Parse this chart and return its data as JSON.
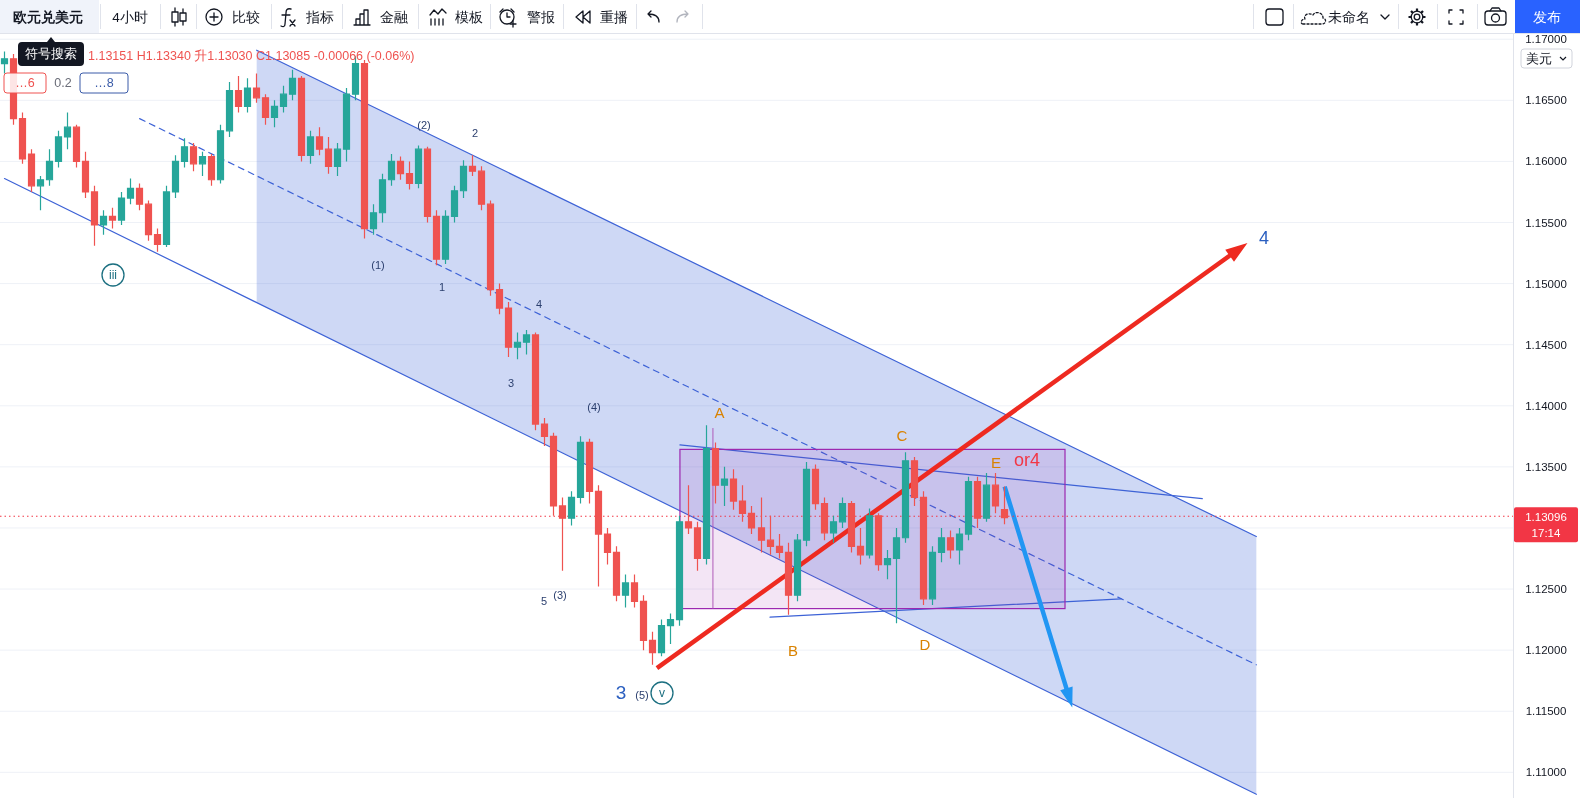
{
  "chart_data": {
    "type": "candlestick",
    "title": "欧元兑美元",
    "subtitle": "4小时",
    "categories": [
      null,
      null,
      null,
      null,
      null,
      null,
      null,
      null,
      null,
      null,
      null,
      null,
      null,
      null,
      null,
      null,
      null,
      null,
      null,
      null,
      null,
      null,
      null,
      null,
      null,
      null,
      null,
      null,
      null,
      null,
      null,
      null,
      null,
      null,
      null,
      null,
      null,
      null,
      null,
      null,
      null,
      null,
      null,
      null,
      null,
      null,
      null,
      null,
      null,
      null,
      null,
      null,
      null,
      null,
      null,
      null,
      null,
      null,
      null,
      null,
      null,
      null,
      null,
      null,
      null,
      null,
      null,
      null,
      null,
      null,
      null,
      null,
      null,
      null,
      null,
      null,
      null,
      null,
      null,
      null,
      null,
      null,
      null,
      null,
      null,
      null,
      null,
      null,
      null,
      null,
      null,
      null,
      null,
      null,
      null,
      null,
      null,
      null,
      null,
      null,
      null,
      null,
      null,
      null,
      null,
      null,
      null,
      null,
      null,
      null,
      null,
      null,
      null,
      null,
      null,
      null,
      null,
      null,
      null,
      null,
      null,
      null,
      null,
      null,
      null,
      null,
      null,
      null,
      null,
      null,
      null,
      null,
      null,
      null,
      null,
      null,
      null,
      null,
      null,
      null,
      null,
      null,
      null,
      null,
      null,
      null,
      null,
      null,
      null,
      null,
      null,
      null,
      null,
      null,
      null,
      null,
      null,
      null,
      null,
      null,
      null,
      null,
      null,
      null,
      null,
      null,
      null,
      null
    ],
    "ohlc": [
      [
        1.168,
        1.169,
        1.1672,
        1.1684
      ],
      [
        1.1684,
        1.1688,
        1.163,
        1.1635
      ],
      [
        1.1635,
        1.164,
        1.1598,
        1.1602
      ],
      [
        1.1606,
        1.161,
        1.1575,
        1.158
      ],
      [
        1.158,
        1.1588,
        1.156,
        1.1585
      ],
      [
        1.1585,
        1.161,
        1.158,
        1.16
      ],
      [
        1.16,
        1.1625,
        1.1595,
        1.162
      ],
      [
        1.162,
        1.164,
        1.161,
        1.1628
      ],
      [
        1.1628,
        1.163,
        1.1595,
        1.16
      ],
      [
        1.16,
        1.1608,
        1.157,
        1.1575
      ],
      [
        1.1575,
        1.158,
        1.1531,
        1.1548
      ],
      [
        1.1548,
        1.156,
        1.154,
        1.1555
      ],
      [
        1.1555,
        1.1562,
        1.1545,
        1.1552
      ],
      [
        1.1552,
        1.1575,
        1.1548,
        1.157
      ],
      [
        1.157,
        1.1586,
        1.1565,
        1.1578
      ],
      [
        1.1578,
        1.1582,
        1.156,
        1.1565
      ],
      [
        1.1565,
        1.1568,
        1.1535,
        1.154
      ],
      [
        1.154,
        1.1545,
        1.1526,
        1.1532
      ],
      [
        1.1532,
        1.158,
        1.153,
        1.1575
      ],
      [
        1.1575,
        1.1605,
        1.157,
        1.16
      ],
      [
        1.16,
        1.1619,
        1.1595,
        1.1612
      ],
      [
        1.1612,
        1.1615,
        1.1592,
        1.1598
      ],
      [
        1.1598,
        1.1608,
        1.1588,
        1.1604
      ],
      [
        1.1604,
        1.1606,
        1.158,
        1.1585
      ],
      [
        1.1585,
        1.163,
        1.1582,
        1.1625
      ],
      [
        1.1625,
        1.1665,
        1.162,
        1.1658
      ],
      [
        1.1658,
        1.167,
        1.164,
        1.1645
      ],
      [
        1.1645,
        1.1668,
        1.164,
        1.166
      ],
      [
        1.166,
        1.1672,
        1.1648,
        1.1652
      ],
      [
        1.1652,
        1.1655,
        1.163,
        1.1636
      ],
      [
        1.1636,
        1.165,
        1.1628,
        1.1645
      ],
      [
        1.1645,
        1.1662,
        1.164,
        1.1655
      ],
      [
        1.1655,
        1.1675,
        1.165,
        1.1668
      ],
      [
        1.1668,
        1.167,
        1.16,
        1.1605
      ],
      [
        1.1605,
        1.1625,
        1.1598,
        1.162
      ],
      [
        1.162,
        1.1628,
        1.1605,
        1.161
      ],
      [
        1.161,
        1.162,
        1.159,
        1.1596
      ],
      [
        1.1596,
        1.1615,
        1.1588,
        1.161
      ],
      [
        1.161,
        1.166,
        1.16,
        1.1655
      ],
      [
        1.1655,
        1.1686,
        1.165,
        1.168
      ],
      [
        1.168,
        1.1683,
        1.1537,
        1.1545
      ],
      [
        1.1545,
        1.1565,
        1.154,
        1.1558
      ],
      [
        1.1558,
        1.159,
        1.155,
        1.1585
      ],
      [
        1.1585,
        1.1606,
        1.158,
        1.16
      ],
      [
        1.16,
        1.1604,
        1.1585,
        1.159
      ],
      [
        1.159,
        1.16,
        1.1577,
        1.1582
      ],
      [
        1.1582,
        1.1613,
        1.1578,
        1.161
      ],
      [
        1.161,
        1.1612,
        1.155,
        1.1555
      ],
      [
        1.1555,
        1.156,
        1.1515,
        1.152
      ],
      [
        1.152,
        1.156,
        1.1516,
        1.1555
      ],
      [
        1.1555,
        1.158,
        1.155,
        1.1576
      ],
      [
        1.1576,
        1.1601,
        1.157,
        1.1596
      ],
      [
        1.1596,
        1.1605,
        1.1588,
        1.1592
      ],
      [
        1.1592,
        1.1596,
        1.156,
        1.1565
      ],
      [
        1.1565,
        1.1568,
        1.149,
        1.1495
      ],
      [
        1.1495,
        1.15,
        1.1475,
        1.148
      ],
      [
        1.148,
        1.1485,
        1.144,
        1.1448
      ],
      [
        1.1448,
        1.146,
        1.1438,
        1.1452
      ],
      [
        1.1452,
        1.1462,
        1.1442,
        1.1458
      ],
      [
        1.1458,
        1.146,
        1.138,
        1.1385
      ],
      [
        1.1385,
        1.139,
        1.1367,
        1.1375
      ],
      [
        1.1375,
        1.1378,
        1.131,
        1.1318
      ],
      [
        1.1318,
        1.1325,
        1.1265,
        1.1308
      ],
      [
        1.1308,
        1.133,
        1.1302,
        1.1325
      ],
      [
        1.1325,
        1.1375,
        1.132,
        1.137
      ],
      [
        1.137,
        1.1373,
        1.132,
        1.133
      ],
      [
        1.133,
        1.1335,
        1.1252,
        1.1295
      ],
      [
        1.1295,
        1.13,
        1.127,
        1.128
      ],
      [
        1.128,
        1.1285,
        1.124,
        1.1245
      ],
      [
        1.1245,
        1.1262,
        1.1235,
        1.1255
      ],
      [
        1.1255,
        1.1262,
        1.1235,
        1.124
      ],
      [
        1.124,
        1.1245,
        1.12,
        1.1208
      ],
      [
        1.1208,
        1.1215,
        1.1188,
        1.1198
      ],
      [
        1.1198,
        1.1225,
        1.1195,
        1.122
      ],
      [
        1.122,
        1.123,
        1.1205,
        1.1225
      ],
      [
        1.1225,
        1.131,
        1.122,
        1.1305
      ],
      [
        1.1305,
        1.1335,
        1.1295,
        1.13
      ],
      [
        1.13,
        1.1305,
        1.1265,
        1.1275
      ],
      [
        1.1275,
        1.1384,
        1.127,
        1.1365
      ],
      [
        1.1365,
        1.137,
        1.132,
        1.1335
      ],
      [
        1.1335,
        1.135,
        1.1318,
        1.134
      ],
      [
        1.134,
        1.1348,
        1.1315,
        1.1322
      ],
      [
        1.1322,
        1.1335,
        1.1305,
        1.1312
      ],
      [
        1.1312,
        1.1318,
        1.1295,
        1.13
      ],
      [
        1.13,
        1.1325,
        1.128,
        1.129
      ],
      [
        1.129,
        1.131,
        1.1278,
        1.1285
      ],
      [
        1.1285,
        1.1295,
        1.1275,
        1.128
      ],
      [
        1.128,
        1.1288,
        1.1229,
        1.1245
      ],
      [
        1.1245,
        1.1295,
        1.124,
        1.129
      ],
      [
        1.129,
        1.1354,
        1.1285,
        1.1348
      ],
      [
        1.1348,
        1.1352,
        1.1315,
        1.132
      ],
      [
        1.132,
        1.1325,
        1.129,
        1.1296
      ],
      [
        1.1296,
        1.131,
        1.1288,
        1.1305
      ],
      [
        1.1305,
        1.1325,
        1.13,
        1.132
      ],
      [
        1.132,
        1.1322,
        1.128,
        1.1285
      ],
      [
        1.1285,
        1.13,
        1.127,
        1.1278
      ],
      [
        1.1278,
        1.1316,
        1.1275,
        1.131
      ],
      [
        1.131,
        1.1312,
        1.1265,
        1.127
      ],
      [
        1.127,
        1.1282,
        1.1258,
        1.1275
      ],
      [
        1.1275,
        1.13,
        1.1222,
        1.1292
      ],
      [
        1.1292,
        1.1362,
        1.1288,
        1.1355
      ],
      [
        1.1355,
        1.1358,
        1.1318,
        1.1325
      ],
      [
        1.1325,
        1.133,
        1.1237,
        1.1242
      ],
      [
        1.1242,
        1.1285,
        1.1237,
        1.128
      ],
      [
        1.128,
        1.13,
        1.1272,
        1.1292
      ],
      [
        1.1292,
        1.1298,
        1.1275,
        1.1282
      ],
      [
        1.1282,
        1.13,
        1.127,
        1.1295
      ],
      [
        1.1295,
        1.1342,
        1.129,
        1.1338
      ],
      [
        1.1338,
        1.1342,
        1.13,
        1.1308
      ],
      [
        1.1308,
        1.1345,
        1.1305,
        1.1335
      ],
      [
        1.1335,
        1.1345,
        1.1312,
        1.1318
      ],
      [
        1.13151,
        1.1334,
        1.1303,
        1.13085
      ],
      null,
      null,
      null,
      null,
      null,
      null,
      null,
      null,
      null,
      null,
      null,
      null,
      null,
      null,
      null,
      null,
      null,
      null,
      null,
      null,
      null,
      null,
      null,
      null,
      null,
      null,
      null,
      null,
      null,
      null,
      null,
      null,
      null,
      null,
      null,
      null,
      null,
      null,
      null,
      null,
      null,
      null,
      null,
      null,
      null,
      null,
      null,
      null,
      null,
      null,
      null,
      null,
      null,
      null,
      null,
      null
    ],
    "colors": [
      "#26a69a",
      "#ef5350",
      "#ef5350",
      "#ef5350",
      "#26a69a",
      "#26a69a",
      "#26a69a",
      "#26a69a",
      "#ef5350",
      "#ef5350",
      "#ef5350",
      "#26a69a",
      "#ef5350",
      "#26a69a",
      "#26a69a",
      "#ef5350",
      "#ef5350",
      "#ef5350",
      "#26a69a",
      "#26a69a",
      "#26a69a",
      "#ef5350",
      "#26a69a",
      "#ef5350",
      "#26a69a",
      "#26a69a",
      "#ef5350",
      "#26a69a",
      "#ef5350",
      "#ef5350",
      "#26a69a",
      "#26a69a",
      "#26a69a",
      "#ef5350",
      "#26a69a",
      "#ef5350",
      "#ef5350",
      "#26a69a",
      "#26a69a",
      "#26a69a",
      "#ef5350",
      "#26a69a",
      "#26a69a",
      "#26a69a",
      "#ef5350",
      "#ef5350",
      "#26a69a",
      "#ef5350",
      "#ef5350",
      "#26a69a",
      "#26a69a",
      "#26a69a",
      "#ef5350",
      "#ef5350",
      "#ef5350",
      "#ef5350",
      "#ef5350",
      "#26a69a",
      "#26a69a",
      "#ef5350",
      "#ef5350",
      "#ef5350",
      "#ef5350",
      "#26a69a",
      "#26a69a",
      "#ef5350",
      "#ef5350",
      "#ef5350",
      "#ef5350",
      "#26a69a",
      "#ef5350",
      "#ef5350",
      "#ef5350",
      "#26a69a",
      "#26a69a",
      "#26a69a",
      "#ef5350",
      "#ef5350",
      "#26a69a",
      "#ef5350",
      "#26a69a",
      "#ef5350",
      "#ef5350",
      "#ef5350",
      "#ef5350",
      "#ef5350",
      "#ef5350",
      "#ef5350",
      "#26a69a",
      "#26a69a",
      "#ef5350",
      "#ef5350",
      "#26a69a",
      "#26a69a",
      "#ef5350",
      "#ef5350",
      "#26a69a",
      "#ef5350",
      "#26a69a",
      "#26a69a",
      "#26a69a",
      "#ef5350",
      "#ef5350",
      "#26a69a",
      "#26a69a",
      "#ef5350",
      "#26a69a",
      "#26a69a",
      "#ef5350",
      "#26a69a",
      "#ef5350",
      "#ef5350",
      null,
      null,
      null,
      null,
      null,
      null,
      null,
      null,
      null,
      null,
      null,
      null,
      null,
      null,
      null,
      null,
      null,
      null,
      null,
      null,
      null,
      null,
      null,
      null,
      null,
      null,
      null,
      null,
      null,
      null,
      null,
      null,
      null,
      null,
      null,
      null,
      null,
      null,
      null,
      null,
      null,
      null,
      null,
      null,
      null,
      null,
      null,
      null,
      null,
      null,
      null,
      null,
      null,
      null,
      null,
      null
    ],
    "series": [
      {
        "type": "line",
        "color": "#3d62d6",
        "line_style": "dashed",
        "values": [
          null,
          null,
          null,
          null,
          null,
          null,
          null,
          null,
          null,
          null,
          null,
          null,
          null,
          null,
          null,
          1.1635,
          null,
          null,
          null,
          null,
          null,
          null,
          null,
          null,
          null,
          null,
          null,
          null,
          null,
          null,
          null,
          null,
          null,
          null,
          null,
          null,
          null,
          null,
          null,
          null,
          null,
          null,
          null,
          null,
          null,
          null,
          null,
          null,
          null,
          null,
          null,
          null,
          null,
          null,
          null,
          null,
          null,
          null,
          null,
          null,
          null,
          null,
          null,
          null,
          null,
          null,
          null,
          null,
          null,
          null,
          null,
          null,
          null,
          null,
          null,
          null,
          null,
          null,
          null,
          null,
          null,
          null,
          null,
          null,
          null,
          null,
          null,
          null,
          null,
          null,
          null,
          null,
          null,
          null,
          null,
          null,
          null,
          null,
          null,
          null,
          null,
          null,
          null,
          null,
          null,
          null,
          null,
          null,
          null,
          null,
          null,
          null,
          null,
          null,
          null,
          null,
          null,
          null,
          null,
          null,
          null,
          null,
          null,
          null,
          null,
          null,
          null,
          null,
          null,
          null,
          null,
          null,
          null,
          null,
          null,
          null,
          null,
          null,
          null,
          1.1188,
          null,
          null,
          null,
          null,
          null,
          null,
          null,
          null,
          null,
          null,
          null,
          null,
          null,
          null,
          null,
          null,
          null,
          null,
          null,
          null,
          null,
          null,
          null,
          null,
          null,
          null,
          null,
          null
        ],
        "lower": [
          null,
          null,
          null,
          null,
          null,
          null,
          null,
          null,
          null,
          null,
          null,
          null,
          null,
          null,
          null,
          null,
          null,
          null,
          null,
          null,
          null,
          null,
          null,
          null,
          null,
          null,
          null,
          null,
          1.1485,
          null,
          null,
          null,
          null,
          null,
          null,
          null,
          null,
          null,
          null,
          null,
          null,
          null,
          null,
          null,
          null,
          null,
          null,
          null,
          null,
          null,
          null,
          null,
          null,
          null,
          null,
          null,
          null,
          null,
          null,
          null,
          null,
          null,
          null,
          null,
          null,
          null,
          null,
          null,
          null,
          null,
          null,
          null,
          null,
          null,
          null,
          null,
          null,
          null,
          null,
          null,
          null,
          null,
          null,
          null,
          null,
          null,
          null,
          null,
          null,
          null,
          null,
          null,
          null,
          null,
          null,
          null,
          null,
          null,
          null,
          null,
          null,
          null,
          null,
          null,
          null,
          null,
          null,
          null,
          null,
          null,
          null,
          null,
          null,
          null,
          null,
          null,
          null,
          null,
          null,
          null,
          null,
          null,
          null,
          null,
          null,
          null,
          null,
          null,
          null,
          null,
          null,
          null,
          null,
          null,
          null,
          null,
          null,
          null,
          null,
          1.1082,
          null,
          null,
          null,
          null,
          null,
          null,
          null,
          null,
          null,
          null,
          null,
          null,
          null,
          null,
          null,
          null,
          null,
          null,
          null,
          null,
          null,
          null,
          null,
          null,
          null,
          null,
          null,
          null
        ],
        "upper": [
          null,
          null,
          null,
          null,
          null,
          null,
          null,
          null,
          null,
          null,
          null,
          null,
          null,
          null,
          null,
          null,
          null,
          null,
          null,
          null,
          null,
          null,
          null,
          null,
          null,
          null,
          null,
          null,
          1.1691,
          null,
          null,
          null,
          null,
          null,
          null,
          null,
          null,
          null,
          null,
          null,
          null,
          null,
          null,
          null,
          null,
          null,
          null,
          null,
          null,
          null,
          null,
          null,
          null,
          null,
          null,
          null,
          null,
          null,
          null,
          null,
          null,
          null,
          null,
          null,
          null,
          null,
          null,
          null,
          null,
          null,
          null,
          null,
          null,
          null,
          null,
          null,
          null,
          null,
          null,
          null,
          null,
          null,
          null,
          null,
          null,
          null,
          null,
          null,
          null,
          null,
          null,
          null,
          null,
          null,
          null,
          null,
          null,
          null,
          null,
          null,
          null,
          null,
          null,
          null,
          null,
          null,
          null,
          null,
          null,
          null,
          null,
          null,
          null,
          null,
          null,
          null,
          null,
          null,
          null,
          null,
          null,
          null,
          null,
          null,
          null,
          null,
          null,
          null,
          null,
          null,
          null,
          null,
          null,
          null,
          null,
          null,
          null,
          null,
          null,
          1.1293,
          null,
          null,
          null,
          null,
          null,
          null,
          null,
          null,
          null,
          null,
          null,
          null,
          null,
          null,
          null,
          null,
          null,
          null,
          null,
          null,
          null,
          null,
          null,
          null,
          null,
          null,
          null,
          null
        ]
      },
      {
        "type": "line",
        "color": "#3d62d6",
        "line_style": "solid",
        "values": [
          1.1586,
          null,
          null,
          null,
          null,
          null,
          null,
          null,
          null,
          null,
          null,
          null,
          null,
          null,
          null,
          null,
          null,
          null,
          null,
          null,
          null,
          null,
          null,
          null,
          null,
          null,
          null,
          null,
          null,
          null,
          null,
          null,
          null,
          null,
          null,
          null,
          null,
          null,
          null,
          null,
          null,
          null,
          null,
          null,
          null,
          null,
          null,
          null,
          null,
          null,
          null,
          null,
          null,
          null,
          null,
          null,
          null,
          null,
          null,
          null,
          null,
          null,
          null,
          null,
          null,
          null,
          null,
          null,
          null,
          null,
          null,
          null,
          null,
          null,
          null,
          null,
          null,
          null,
          null,
          null,
          null,
          null,
          null,
          null,
          null,
          null,
          null,
          null,
          null,
          null,
          null,
          null,
          null,
          null,
          null,
          null,
          null,
          null,
          null,
          null,
          null,
          null,
          null,
          null,
          null,
          null,
          null,
          null,
          null,
          null,
          null,
          null,
          null,
          null,
          null,
          null,
          null,
          null,
          null,
          null,
          null,
          null,
          null,
          null,
          null,
          null,
          null,
          null,
          null,
          null,
          null,
          null,
          null,
          null,
          null,
          null,
          null,
          null,
          null,
          1.1082,
          null,
          null,
          null,
          null,
          null,
          null,
          null,
          null,
          null,
          null,
          null,
          null,
          null,
          null,
          null,
          null,
          null,
          null,
          null,
          null,
          null,
          null,
          null,
          null,
          null,
          null,
          null,
          null
        ]
      },
      {
        "type": "line",
        "color": "#3d62d6",
        "line_style": "solid",
        "values": [
          null,
          null,
          null,
          null,
          null,
          null,
          null,
          null,
          null,
          null,
          null,
          null,
          null,
          null,
          null,
          null,
          null,
          null,
          null,
          null,
          null,
          null,
          null,
          null,
          null,
          null,
          null,
          null,
          1.1691,
          null,
          null,
          null,
          null,
          null,
          null,
          null,
          null,
          null,
          null,
          null,
          null,
          null,
          null,
          null,
          null,
          null,
          null,
          null,
          null,
          null,
          null,
          null,
          null,
          null,
          null,
          null,
          null,
          null,
          null,
          null,
          null,
          null,
          null,
          null,
          null,
          null,
          null,
          null,
          null,
          null,
          null,
          null,
          null,
          null,
          null,
          null,
          null,
          null,
          null,
          null,
          null,
          null,
          null,
          null,
          null,
          null,
          null,
          null,
          null,
          null,
          null,
          null,
          null,
          null,
          null,
          null,
          null,
          null,
          null,
          null,
          null,
          null,
          null,
          null,
          null,
          null,
          null,
          null,
          null,
          null,
          null,
          null,
          null,
          null,
          null,
          null,
          null,
          null,
          null,
          null,
          null,
          null,
          null,
          null,
          null,
          null,
          null,
          null,
          null,
          null,
          null,
          null,
          null,
          null,
          null,
          null,
          null,
          null,
          null,
          1.1293,
          null,
          null,
          null,
          null,
          null,
          null,
          null,
          null,
          null,
          null,
          null,
          null,
          null,
          null,
          null,
          null,
          null,
          null,
          null,
          null,
          null,
          null,
          null,
          null,
          null,
          null,
          null,
          null
        ]
      },
      {
        "type": "line",
        "color": "#3d62d6",
        "line_style": "solid",
        "values": [
          null,
          null,
          null,
          null,
          null,
          null,
          null,
          null,
          null,
          null,
          null,
          null,
          null,
          null,
          null,
          null,
          null,
          null,
          null,
          null,
          null,
          null,
          null,
          null,
          null,
          null,
          null,
          null,
          null,
          null,
          null,
          null,
          null,
          null,
          null,
          null,
          null,
          null,
          null,
          null,
          null,
          null,
          null,
          null,
          null,
          null,
          null,
          null,
          null,
          null,
          null,
          null,
          null,
          null,
          null,
          null,
          null,
          null,
          null,
          null,
          null,
          null,
          null,
          null,
          null,
          null,
          null,
          null,
          null,
          null,
          null,
          null,
          null,
          null,
          null,
          1.1368,
          null,
          null,
          null,
          null,
          null,
          null,
          null,
          null,
          null,
          null,
          null,
          null,
          null,
          null,
          null,
          null,
          null,
          null,
          null,
          null,
          null,
          null,
          null,
          null,
          null,
          null,
          null,
          null,
          null,
          null,
          null,
          null,
          null,
          null,
          null,
          null,
          null,
          null,
          null,
          null,
          null,
          null,
          null,
          null,
          null,
          null,
          null,
          null,
          null,
          null,
          null,
          null,
          null,
          null,
          null,
          null,
          null,
          1.1324,
          null,
          null,
          null,
          null,
          null,
          null,
          null,
          null,
          null,
          null,
          null,
          null,
          null,
          null,
          null,
          null,
          null,
          null,
          null,
          null,
          null,
          null,
          null,
          null,
          null,
          null,
          null,
          null,
          null,
          null,
          null,
          null,
          null,
          null
        ]
      },
      {
        "type": "line",
        "color": "#3d62d6",
        "line_style": "solid",
        "values": [
          null,
          null,
          null,
          null,
          null,
          null,
          null,
          null,
          null,
          null,
          null,
          null,
          null,
          null,
          null,
          null,
          null,
          null,
          null,
          null,
          null,
          null,
          null,
          null,
          null,
          null,
          null,
          null,
          null,
          null,
          null,
          null,
          null,
          null,
          null,
          null,
          null,
          null,
          null,
          null,
          null,
          null,
          null,
          null,
          null,
          null,
          null,
          null,
          null,
          null,
          null,
          null,
          null,
          null,
          null,
          null,
          null,
          null,
          null,
          null,
          null,
          null,
          null,
          null,
          null,
          null,
          null,
          null,
          null,
          null,
          null,
          null,
          null,
          null,
          null,
          null,
          null,
          null,
          null,
          null,
          null,
          null,
          null,
          null,
          null,
          1.1227,
          null,
          null,
          null,
          null,
          null,
          null,
          null,
          null,
          null,
          null,
          null,
          null,
          null,
          null,
          null,
          null,
          null,
          null,
          null,
          null,
          null,
          null,
          null,
          null,
          null,
          null,
          null,
          null,
          null,
          null,
          null,
          null,
          null,
          null,
          null,
          null,
          null,
          null,
          1.1242,
          null,
          null,
          null,
          null,
          null,
          null,
          null,
          null,
          null,
          null,
          null,
          null,
          null,
          null,
          null,
          null,
          null,
          null,
          null,
          null,
          null,
          null,
          null,
          null,
          null,
          null,
          null,
          null,
          null,
          null,
          null,
          null,
          null,
          null,
          null,
          null,
          null,
          null,
          null,
          null,
          null,
          null,
          null
        ]
      }
    ],
    "ylim": [
      1.1079,
      1.1701
    ],
    "yticks": [
      {
        "value": 1.11,
        "label": "1.11000"
      },
      {
        "value": 1.115,
        "label": "1.11500"
      },
      {
        "value": 1.12,
        "label": "1.12000"
      },
      {
        "value": 1.125,
        "label": "1.12500"
      },
      {
        "value": 1.13,
        "label": null
      },
      {
        "value": 1.135,
        "label": "1.13500"
      },
      {
        "value": 1.14,
        "label": "1.14000"
      },
      {
        "value": 1.145,
        "label": "1.14500"
      },
      {
        "value": 1.15,
        "label": "1.15000"
      },
      {
        "value": 1.155,
        "label": "1.15500"
      },
      {
        "value": 1.16,
        "label": "1.16000"
      },
      {
        "value": 1.165,
        "label": "1.16500"
      },
      {
        "value": 1.17,
        "label": "1.17000"
      }
    ],
    "grid": "y",
    "tick_labels": "y",
    "ref_lines": [
      {
        "axis": "y",
        "value": 1.13096,
        "label": "1.13096",
        "color": "#f23645",
        "line_style": "dotted"
      }
    ],
    "annotations": [
      "比较",
      "指标",
      "金融",
      "模板",
      "警报",
      "重播",
      "未命名",
      "发布",
      "符号搜索",
      "1.13151 H1.13340 升1.13030 C1.13085 -0.00066 (-0.06%)",
      "…6",
      "0.2",
      "…8",
      "美元",
      "17:14",
      "iii",
      "(1)",
      "1",
      "(2)",
      "2",
      "4",
      "3",
      "(4)",
      "5",
      "(3)",
      "3",
      "(5)",
      "v",
      "A",
      "B",
      "C",
      "D",
      "E",
      "or4",
      "4"
    ]
  }
}
